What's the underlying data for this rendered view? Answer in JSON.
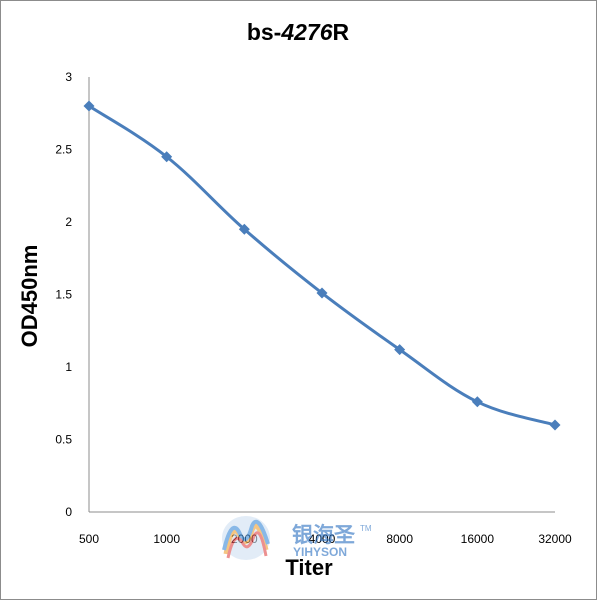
{
  "chart_data": {
    "type": "line",
    "title_prefix": "bs-",
    "title_number": "4276",
    "title_suffix": "R",
    "xlabel": "Titer",
    "ylabel": "OD450nm",
    "categories": [
      "500",
      "1000",
      "2000",
      "4000",
      "8000",
      "16000",
      "32000"
    ],
    "series": [
      {
        "values": [
          2.8,
          2.45,
          1.95,
          1.51,
          1.12,
          0.76,
          0.6
        ]
      }
    ],
    "ylim": [
      0,
      3
    ],
    "yticks": [
      "0",
      "0.5",
      "1",
      "1.5",
      "2",
      "2.5",
      "3"
    ],
    "line_color": "#4a7ebb",
    "grid": false,
    "smooth": true
  },
  "watermark": {
    "brand_cn": "银海圣",
    "brand_en": "YIHYSON",
    "tm": "TM"
  }
}
